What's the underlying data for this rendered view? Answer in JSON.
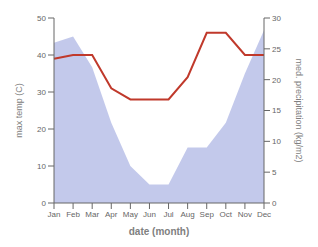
{
  "chart_data": {
    "type": "line",
    "categories": [
      "Jan",
      "Feb",
      "Mar",
      "Apr",
      "May",
      "Jun",
      "Jul",
      "Aug",
      "Sep",
      "Oct",
      "Nov",
      "Dec"
    ],
    "xlabel": "date (month)",
    "ylabel": "max temp (C)",
    "y2label": "med. precipitation (kg/m2)",
    "ylim": [
      0,
      50
    ],
    "yticks": [
      0,
      10,
      20,
      30,
      40,
      50
    ],
    "y2lim": [
      0,
      30
    ],
    "y2ticks": [
      0,
      5,
      10,
      15,
      20,
      25,
      30
    ],
    "grid": false,
    "series": [
      {
        "type": "area",
        "axis": "y2",
        "color": "#b8bfe8",
        "values": [
          26,
          27,
          22,
          13,
          6,
          3,
          3,
          9,
          9,
          13,
          21,
          28
        ]
      },
      {
        "type": "line",
        "color": "#c0392b",
        "values": [
          39,
          40,
          40,
          31,
          28,
          28,
          28,
          34,
          46,
          46,
          40,
          40
        ]
      }
    ]
  }
}
